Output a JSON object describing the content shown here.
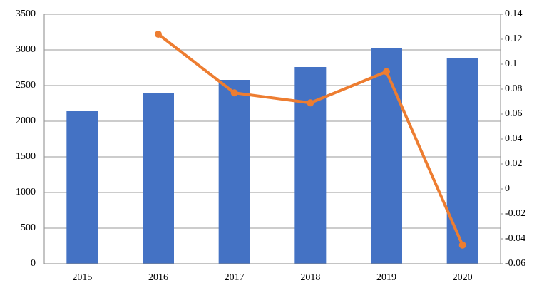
{
  "chart_data": {
    "type": "bar",
    "categories": [
      "2015",
      "2016",
      "2017",
      "2018",
      "2019",
      "2020"
    ],
    "series": [
      {
        "type": "bar",
        "color": "#4472c4",
        "values": [
          2140,
          2400,
          2580,
          2760,
          3020,
          2880
        ]
      },
      {
        "type": "line",
        "axis": "y2",
        "color": "#ed7d31",
        "values": [
          null,
          0.124,
          0.077,
          0.069,
          0.094,
          -0.045
        ]
      }
    ],
    "ylim": [
      0,
      3500
    ],
    "yticks": [
      0,
      500,
      1000,
      1500,
      2000,
      2500,
      3000,
      3500
    ],
    "y2lim": [
      -0.06,
      0.14
    ],
    "y2ticks": [
      -0.06,
      -0.04,
      -0.02,
      0,
      0.02,
      0.04,
      0.06,
      0.08,
      0.1,
      0.12,
      0.14
    ],
    "grid": true
  }
}
